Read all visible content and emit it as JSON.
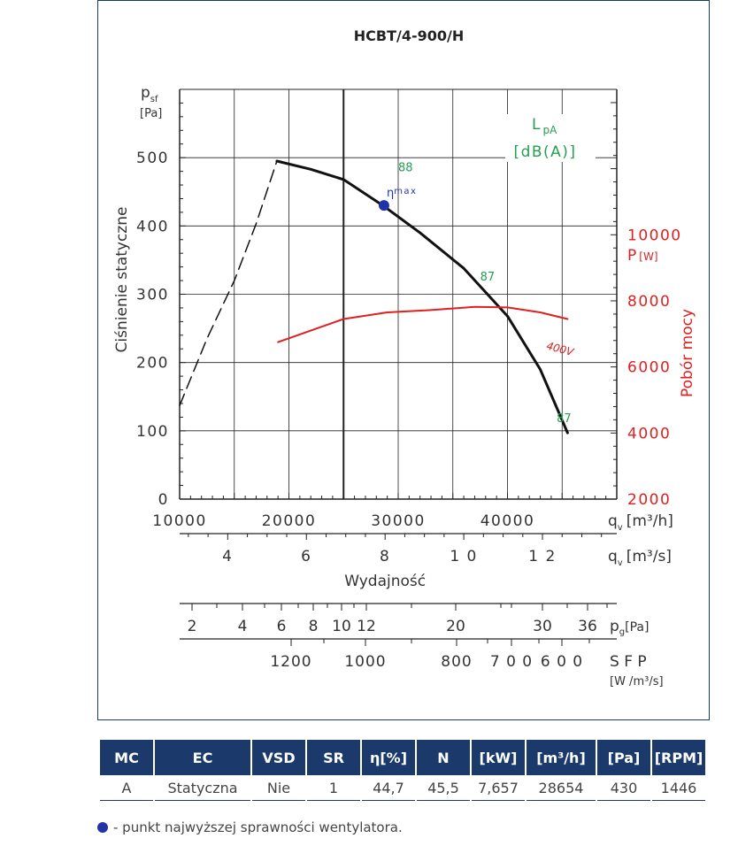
{
  "chart_data": {
    "type": "line",
    "title": "HCBT/4-900/H",
    "ylabel_left": "Ciśnienie statyczne",
    "ylabel_left_symbol": "p",
    "ylabel_left_subscript": "sf",
    "ylabel_left_unit": "[Pa]",
    "ylabel_right": "Pobór mocy",
    "ylabel_right_symbol": "P",
    "ylabel_right_unit": "[W]",
    "xlabel": "Wydajność",
    "x_unit_h": "[m³/h]",
    "x_unit_s": "[m³/s]",
    "x_symbol": "q",
    "x_symbol_sub": "v",
    "sound_label": "L",
    "sound_label_sub": "pA",
    "sound_unit": "[dB(A)]",
    "xlim": [
      10000,
      50000
    ],
    "ylim_left": [
      0,
      600
    ],
    "ylim_right": [
      2000,
      14400
    ],
    "x_ticks": [
      10000,
      20000,
      30000,
      40000
    ],
    "x_tick_labels": [
      "10000",
      "20000",
      "30000",
      "40000"
    ],
    "y_ticks_left": [
      0,
      100,
      200,
      300,
      400,
      500
    ],
    "y_tick_labels_left": [
      "0",
      "100",
      "200",
      "300",
      "400",
      "500"
    ],
    "y_ticks_right": [
      2000,
      4000,
      6000,
      8000,
      10000
    ],
    "y_tick_labels_right": [
      "2000",
      "4000",
      "6000",
      "8000",
      "10000"
    ],
    "x_ticks_s": [
      4,
      6,
      8,
      10,
      12
    ],
    "x_tick_labels_s": [
      "4",
      "6",
      "8",
      "1 0",
      "1 2"
    ],
    "grid": true,
    "series": [
      {
        "color": "#111111",
        "values": [
          [
            18900,
            495
          ],
          [
            22000,
            483
          ],
          [
            25000,
            468
          ],
          [
            28600,
            430
          ],
          [
            32000,
            390
          ],
          [
            36000,
            338
          ],
          [
            40000,
            268
          ],
          [
            43000,
            190
          ],
          [
            45500,
            97
          ]
        ]
      },
      {
        "color": "#111111",
        "dashed": true,
        "values": [
          [
            10000,
            137
          ],
          [
            12500,
            235
          ],
          [
            15000,
            320
          ],
          [
            17000,
            403
          ],
          [
            18900,
            495
          ]
        ]
      },
      {
        "name": "400V",
        "color": "#e02020",
        "axis": "right",
        "values": [
          [
            19000,
            6750
          ],
          [
            22000,
            7100
          ],
          [
            25000,
            7450
          ],
          [
            29000,
            7650
          ],
          [
            33000,
            7720
          ],
          [
            37000,
            7820
          ],
          [
            40000,
            7800
          ],
          [
            43000,
            7650
          ],
          [
            45500,
            7450
          ]
        ]
      }
    ],
    "annotations": [
      {
        "text": "88",
        "x": 30000,
        "y": 480,
        "color": "#22a050"
      },
      {
        "text": "87",
        "x": 37500,
        "y": 320,
        "color": "#22a050"
      },
      {
        "text": "87",
        "x": 44500,
        "y": 113,
        "color": "#22a050"
      },
      {
        "text": "400V",
        "x": 43500,
        "y": 220,
        "color": "#e02020"
      }
    ],
    "eta_max": {
      "label_symbol": "η",
      "label_sub": "max",
      "x": 28700,
      "y": 430,
      "color": "#2233aa"
    },
    "pressure_scale": {
      "ticks": [
        2,
        4,
        6,
        8,
        10,
        12,
        20,
        30,
        36
      ],
      "tick_labels": [
        "2",
        "4",
        "6",
        "8",
        "10",
        "12",
        "20",
        "30",
        "36"
      ],
      "symbol": "p",
      "symbol_sub": "g",
      "unit": "[Pa]"
    },
    "sfp_scale": {
      "ticks": [
        1200,
        1000,
        800,
        700,
        600
      ],
      "tick_labels": [
        "1200",
        "1000",
        "800",
        "7 0 0",
        "6 0 0"
      ],
      "label": "S F P",
      "unit": "[W /m³/s]"
    }
  },
  "table": {
    "headers": [
      "MC",
      "EC",
      "VSD",
      "SR",
      "η[%]",
      "N",
      "[kW]",
      "[m³/h]",
      "[Pa]",
      "[RPM]"
    ],
    "row": [
      "A",
      "Statyczna",
      "Nie",
      "1",
      "44,7",
      "45,5",
      "7,657",
      "28654",
      "430",
      "1446"
    ],
    "header_color": "#1b3a6b"
  },
  "footnote": "- punkt najwyższej sprawności wentylatora."
}
